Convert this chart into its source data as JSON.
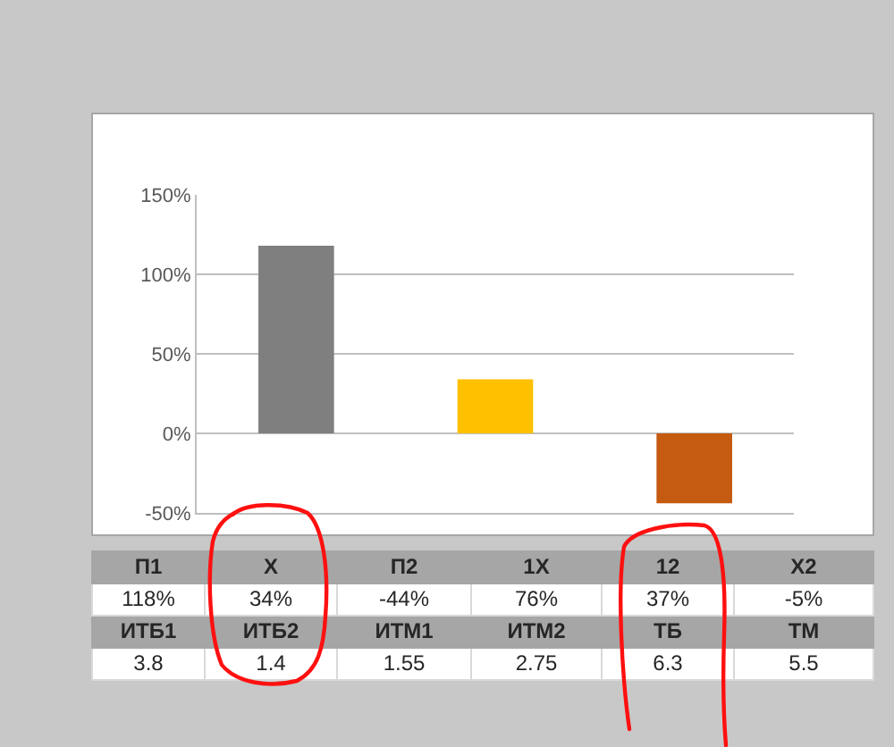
{
  "chart_data": [
    {
      "type": "bar",
      "categories": [
        null,
        null,
        null
      ],
      "values": [
        118,
        34,
        -44
      ],
      "colors": [
        "#7f7f7f",
        "#ffc000",
        "#c55a11"
      ],
      "ylim": [
        -50,
        150
      ],
      "yticks": [
        {
          "value": -50,
          "label": "-50%"
        },
        {
          "value": 0,
          "label": "0%"
        },
        {
          "value": 50,
          "label": "50%"
        },
        {
          "value": 100,
          "label": "100%"
        },
        {
          "value": 150,
          "label": "150%"
        }
      ],
      "grid": "y",
      "tick_labels": "y"
    },
    {
      "type": "other",
      "categories": [
        "П1",
        "X",
        "П2",
        "1X",
        "12",
        "X2",
        "ИТБ1",
        "ИТБ2",
        "ИТМ1",
        "ИТМ2",
        "ТБ",
        "ТМ"
      ],
      "value_labels": [
        "118%",
        "34%",
        "-44%",
        "76%",
        "37%",
        "-5%",
        "3.8",
        "1.4",
        "1.55",
        "2.75",
        "6.3",
        "5.5"
      ]
    }
  ]
}
